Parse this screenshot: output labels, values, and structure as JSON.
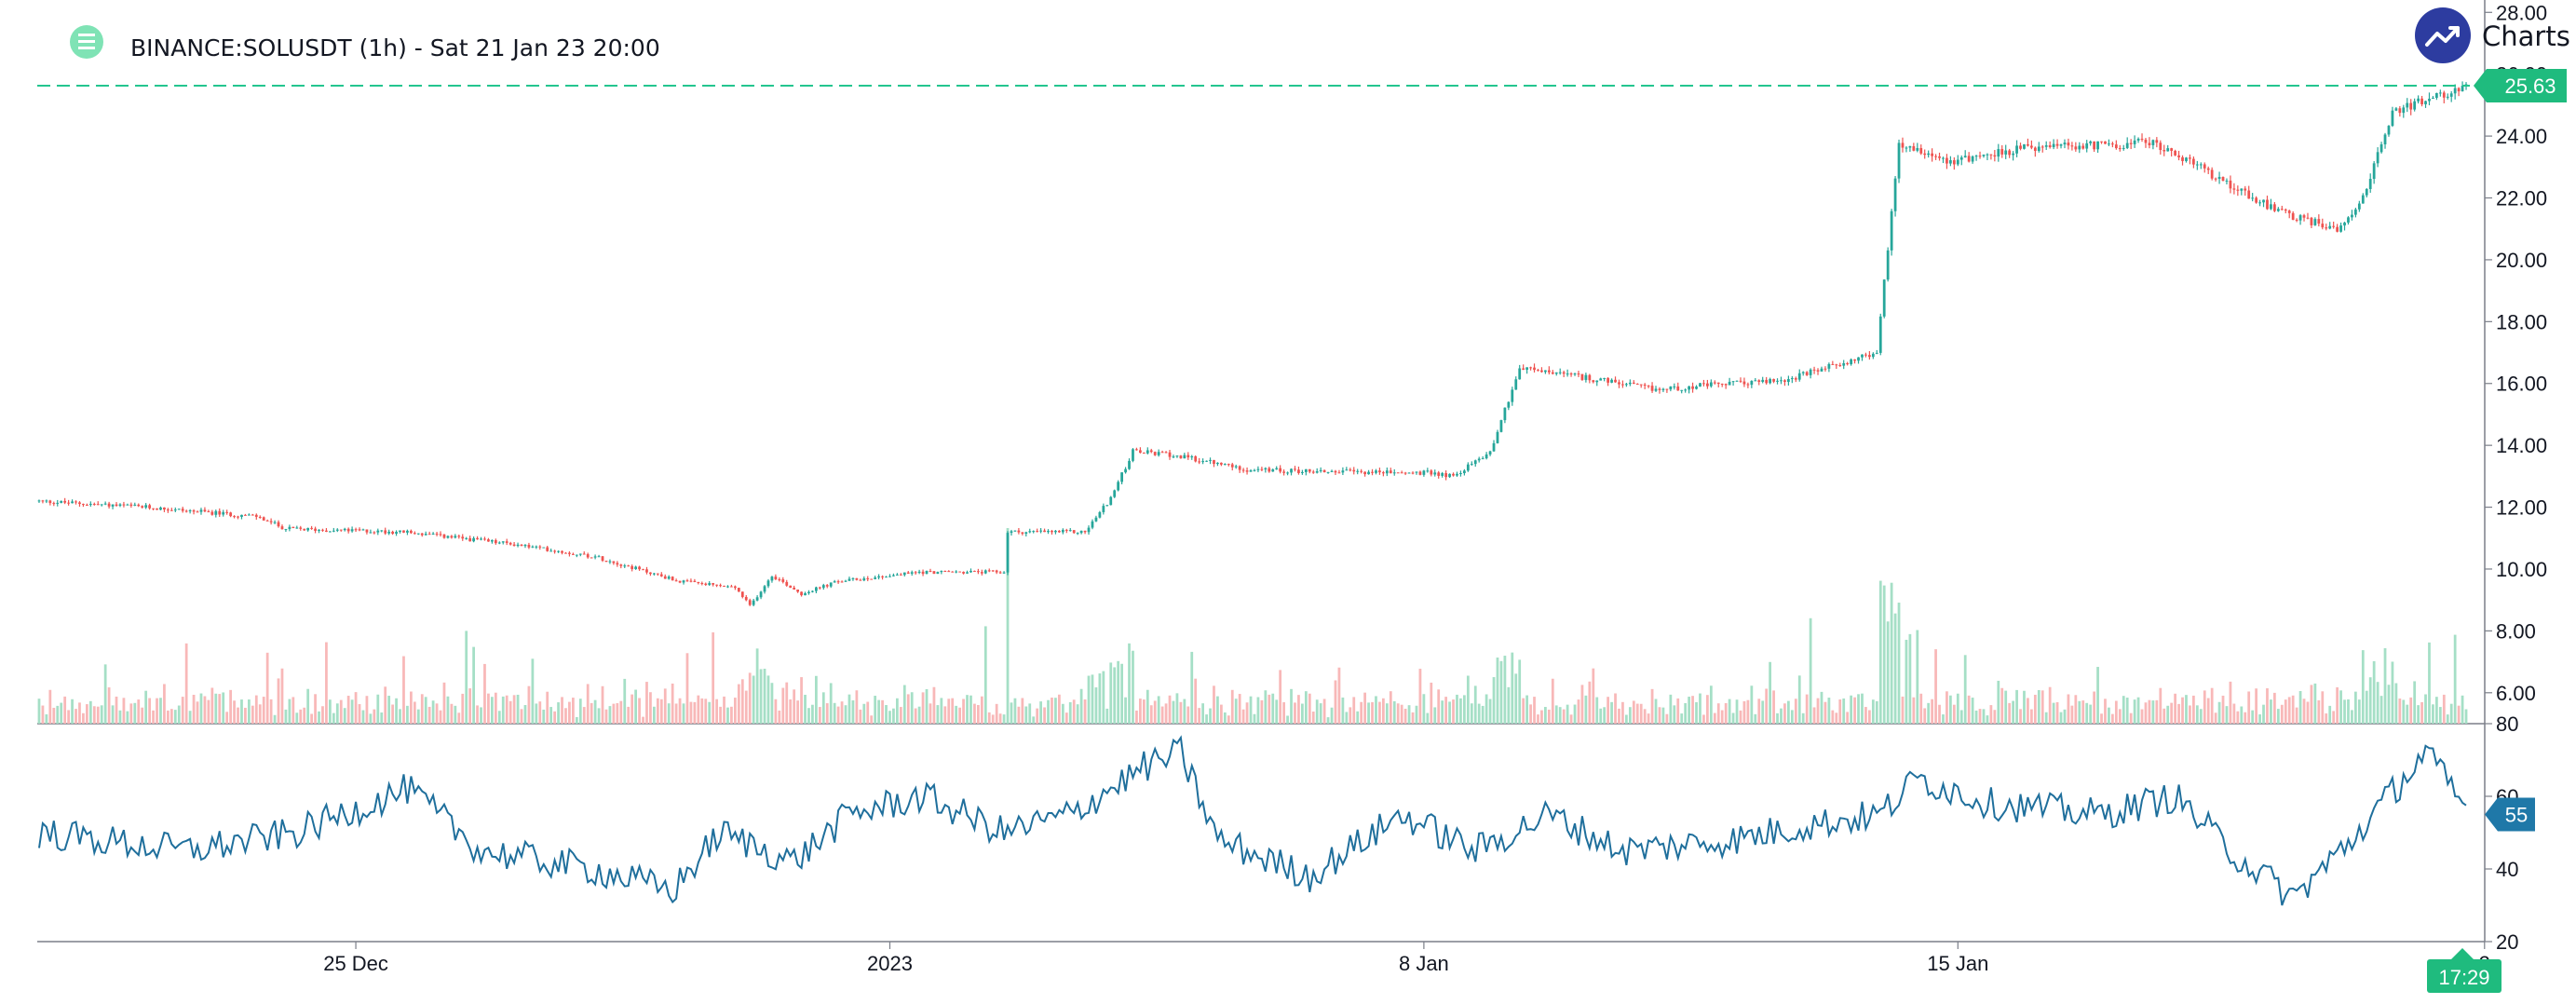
{
  "chart_data": {
    "type": "candlestick",
    "title": "BINANCE:SOLUSDT (1h) - Sat 21 Jan 23 20:00",
    "watermark": "Charts p",
    "x_axis": {
      "ticks": [
        "25 Dec",
        "2023",
        "8 Jan",
        "15 Jan",
        "2"
      ],
      "time_badge": "17:29"
    },
    "price_pane": {
      "ylim": [
        5,
        28.4
      ],
      "y_ticks": [
        "6.00",
        "8.00",
        "10.00",
        "12.00",
        "14.00",
        "16.00",
        "18.00",
        "20.00",
        "22.00",
        "24.00",
        "26.00",
        "28.00"
      ],
      "last_price": 25.63,
      "last_price_label": "25.63",
      "price_path": [
        [
          0,
          12.2
        ],
        [
          30,
          12.0
        ],
        [
          60,
          11.7
        ],
        [
          68,
          11.3
        ],
        [
          100,
          11.2
        ],
        [
          130,
          10.8
        ],
        [
          152,
          10.4
        ],
        [
          175,
          9.6
        ],
        [
          190,
          9.4
        ],
        [
          194,
          8.8
        ],
        [
          200,
          9.8
        ],
        [
          208,
          9.2
        ],
        [
          218,
          9.6
        ],
        [
          240,
          9.9
        ],
        [
          263,
          9.9
        ],
        [
          264,
          11.2
        ],
        [
          285,
          11.2
        ],
        [
          292,
          12.3
        ],
        [
          298,
          13.8
        ],
        [
          308,
          13.7
        ],
        [
          330,
          13.2
        ],
        [
          380,
          13.1
        ],
        [
          385,
          13.0
        ],
        [
          395,
          13.8
        ],
        [
          403,
          16.5
        ],
        [
          420,
          16.2
        ],
        [
          440,
          15.8
        ],
        [
          460,
          16.0
        ],
        [
          475,
          16.1
        ],
        [
          500,
          17.0
        ],
        [
          506,
          23.8
        ],
        [
          520,
          23.2
        ],
        [
          540,
          23.6
        ],
        [
          560,
          23.7
        ],
        [
          575,
          23.8
        ],
        [
          595,
          22.5
        ],
        [
          610,
          21.5
        ],
        [
          625,
          21.0
        ],
        [
          632,
          22.0
        ],
        [
          640,
          24.8
        ],
        [
          660,
          25.6
        ]
      ],
      "volume_hint": "low-to-moderate hourly volume with spikes at 8 Jan and 15 Jan"
    },
    "rsi_pane": {
      "ylim": [
        20,
        80
      ],
      "y_ticks": [
        "20",
        "40",
        "60",
        "80"
      ],
      "last_value": 55,
      "last_value_label": "55",
      "rsi_path": [
        [
          0,
          50
        ],
        [
          40,
          45
        ],
        [
          70,
          50
        ],
        [
          100,
          62
        ],
        [
          120,
          45
        ],
        [
          150,
          40
        ],
        [
          172,
          34
        ],
        [
          185,
          50
        ],
        [
          205,
          42
        ],
        [
          220,
          55
        ],
        [
          240,
          60
        ],
        [
          262,
          50
        ],
        [
          280,
          55
        ],
        [
          300,
          68
        ],
        [
          310,
          72
        ],
        [
          320,
          48
        ],
        [
          345,
          38
        ],
        [
          370,
          55
        ],
        [
          390,
          45
        ],
        [
          410,
          55
        ],
        [
          430,
          45
        ],
        [
          460,
          48
        ],
        [
          480,
          52
        ],
        [
          500,
          55
        ],
        [
          510,
          65
        ],
        [
          530,
          58
        ],
        [
          560,
          55
        ],
        [
          580,
          60
        ],
        [
          595,
          45
        ],
        [
          612,
          32
        ],
        [
          628,
          48
        ],
        [
          648,
          72
        ],
        [
          660,
          55
        ]
      ]
    },
    "colors": {
      "up": "#26a69a",
      "down": "#ef5350",
      "up_volume": "#a5dfc6",
      "down_volume": "#f8b8b8",
      "price_line": "#24c58f",
      "rsi_line": "#1f6f9c",
      "rsi_badge": "#1f78a8",
      "time_badge": "#1fbb7e",
      "watermark_circle": "#2d3ca0"
    }
  }
}
